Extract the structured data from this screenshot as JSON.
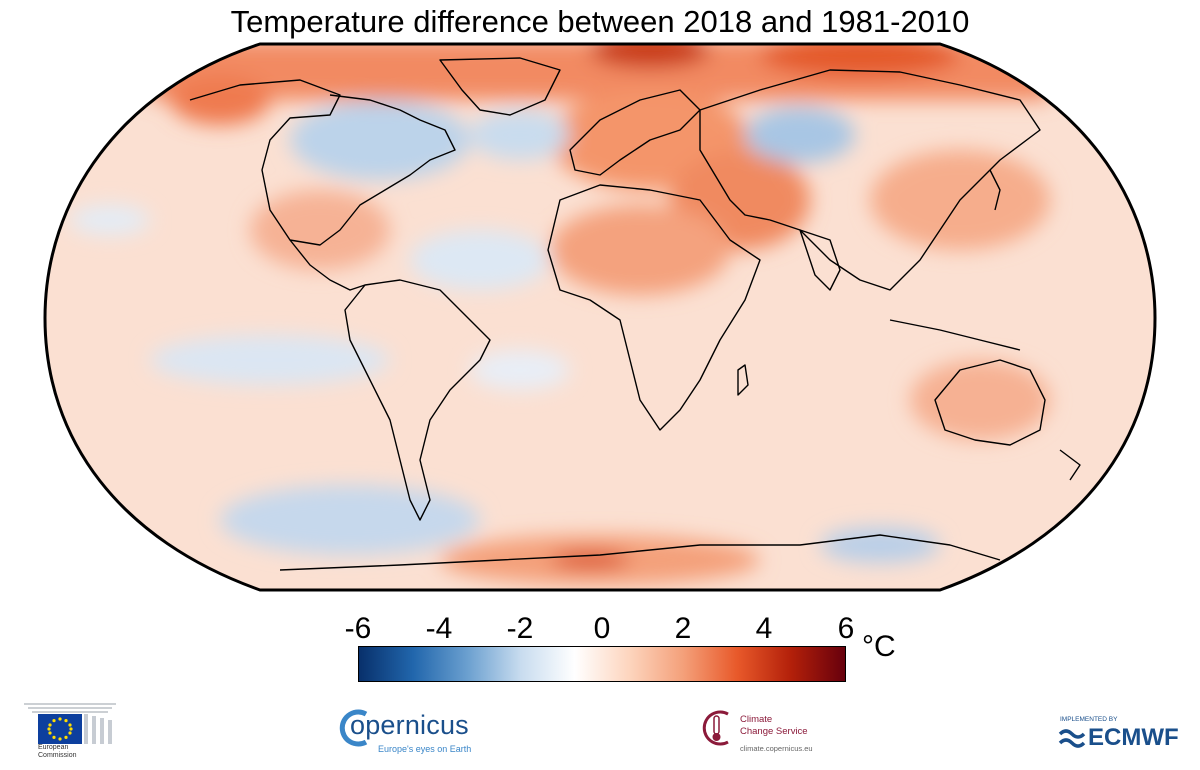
{
  "title": "Temperature difference between 2018 and 1981-2010",
  "colorbar": {
    "ticks": [
      "-6",
      "-4",
      "-2",
      "0",
      "2",
      "4",
      "6"
    ],
    "min": -6,
    "max": 6,
    "unit": "°C",
    "colors": [
      "#08306b",
      "#2166ac",
      "#6a9fcf",
      "#c8dcef",
      "#ffffff",
      "#fdd5be",
      "#f4a07a",
      "#e8592a",
      "#b3200a",
      "#67000d"
    ]
  },
  "map": {
    "projection": "Robinson",
    "ocean_background": "#fbe3d7",
    "land_outline": "#000000"
  },
  "logos": {
    "european_commission": "European\nCommission",
    "copernicus_name": "opernicus",
    "copernicus_tagline": "Europe's eyes on Earth",
    "c3s_name_line1": "Climate",
    "c3s_name_line2": "Change Service",
    "c3s_url": "climate.copernicus.eu",
    "ecmwf_implemented": "IMPLEMENTED BY",
    "ecmwf_name": "ECMWF"
  }
}
